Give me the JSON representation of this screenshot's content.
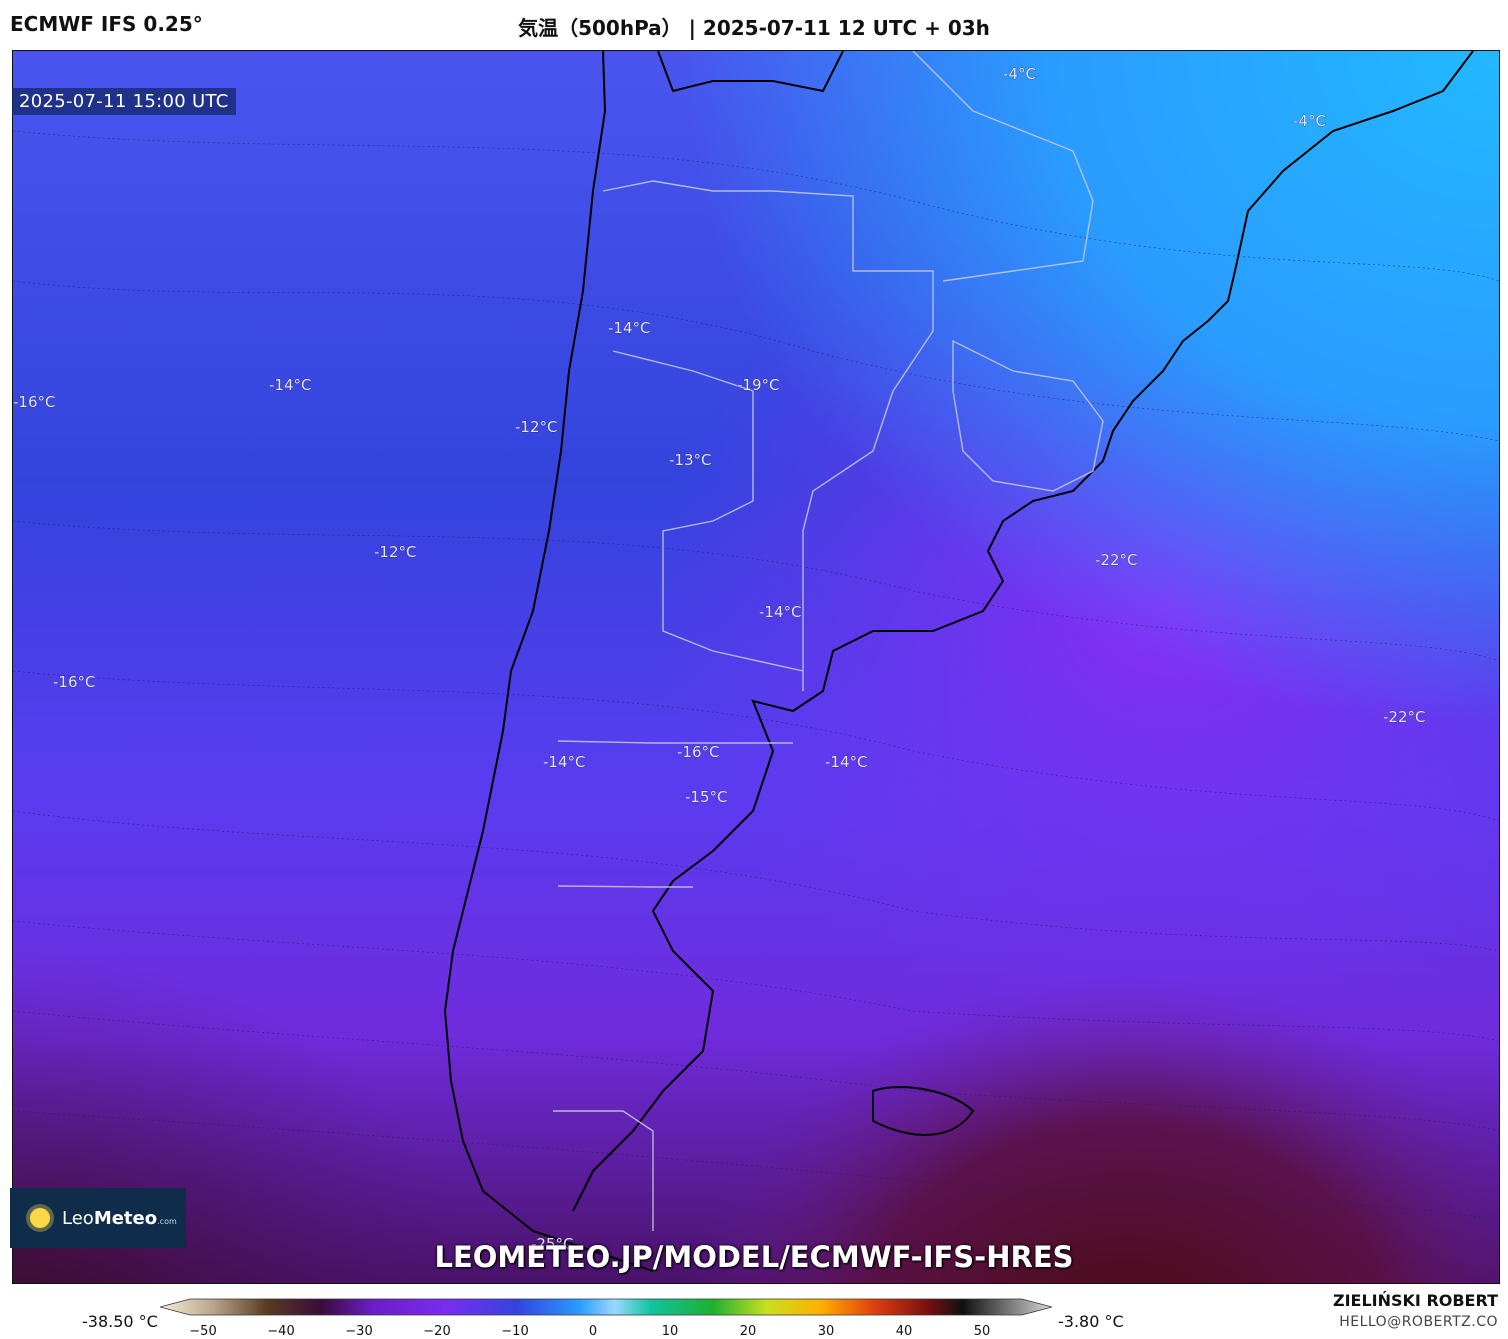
{
  "header": {
    "model": "ECMWF IFS 0.25°",
    "title": "気温（500hPa） | 2025-07-11 12 UTC + 03h"
  },
  "map": {
    "valid_time": "2025-07-11 15:00 UTC",
    "labels": [
      "-4°C",
      "-4°C",
      "-14°C",
      "-14°C",
      "-16°C",
      "-19°C",
      "-12°C",
      "-13°C",
      "-12°C",
      "-22°C",
      "-14°C",
      "-16°C",
      "-22°C",
      "-14°C",
      "-16°C",
      "-14°C",
      "-15°C",
      "-25°C"
    ],
    "colors": {
      "warm_band": "#2fb4ff",
      "mid_band": "#3a4fe0",
      "cold_band": "#8b2cf0",
      "very_cold": "#5a0f1c"
    }
  },
  "logo": {
    "brand_light": "Leo",
    "brand_bold": "Meteo",
    "brand_suffix": ".com"
  },
  "watermark": "LEOMETEO.JP/MODEL/ECMWF-IFS-HRES",
  "colorbar": {
    "min_label": "-38.50 °C",
    "max_label": "-3.80 °C",
    "ticks": [
      "−50",
      "−40",
      "−30",
      "−20",
      "−10",
      "0",
      "10",
      "20",
      "30",
      "40",
      "50"
    ]
  },
  "credit": {
    "name": "ZIELIŃSKI ROBERT",
    "email": "HELLO@ROBERTZ.CO"
  }
}
